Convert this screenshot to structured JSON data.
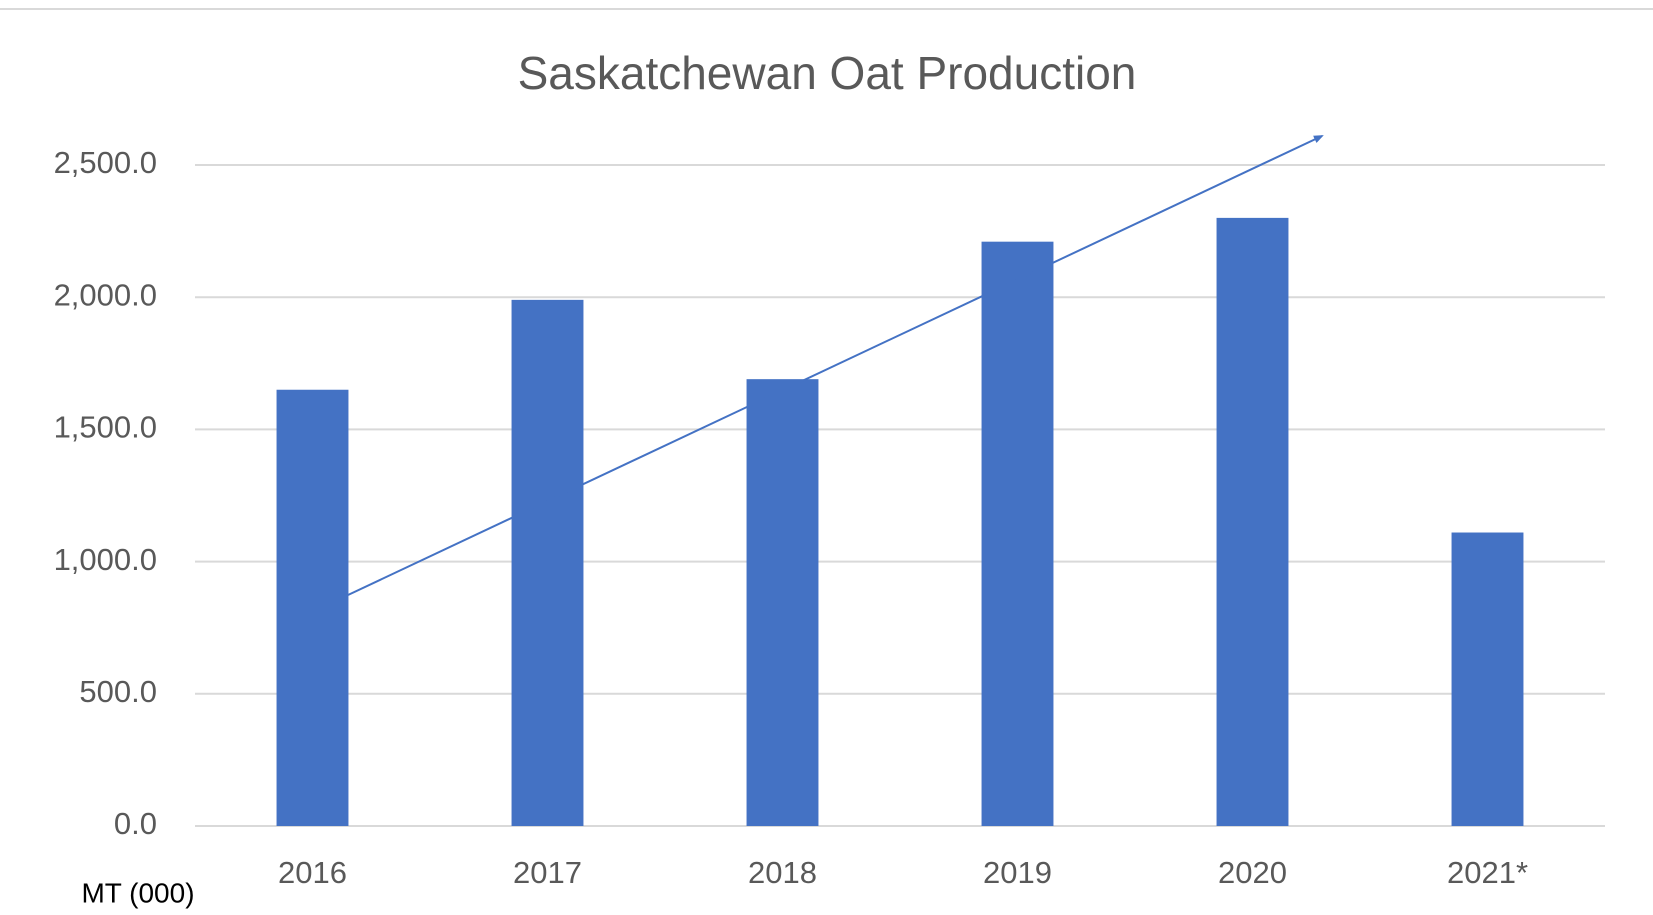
{
  "chart_data": {
    "type": "bar",
    "title": "Saskatchewan Oat Production",
    "y_axis_label": "MT (000)",
    "categories": [
      "2016",
      "2017",
      "2018",
      "2019",
      "2020",
      "2021*"
    ],
    "values": [
      1650,
      1990,
      1690,
      2210,
      2300,
      1110
    ],
    "color": "#4472c4",
    "ylim": [
      0,
      2500
    ],
    "yticks": [
      {
        "value": 0,
        "label": "0.0"
      },
      {
        "value": 500,
        "label": "500.0"
      },
      {
        "value": 1000,
        "label": "1,000.0"
      },
      {
        "value": 1500,
        "label": "1,500.0"
      },
      {
        "value": 2000,
        "label": "2,000.0"
      },
      {
        "value": 2500,
        "label": "2,500.0"
      }
    ],
    "grid": true
  }
}
